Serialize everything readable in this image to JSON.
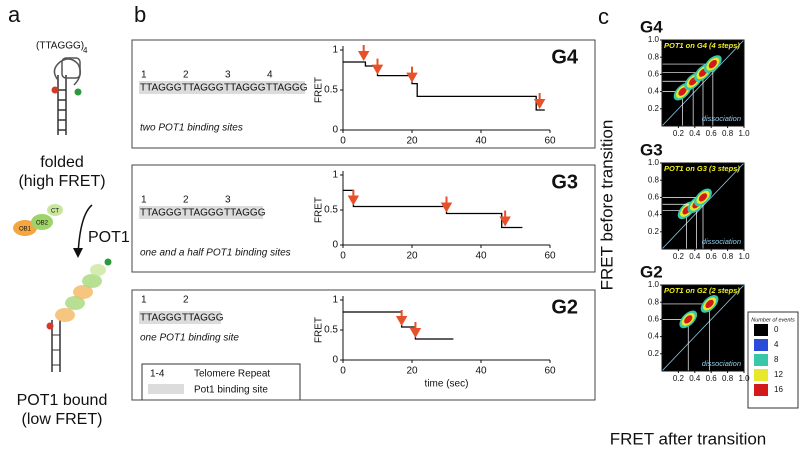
{
  "panel_a": {
    "label": "a",
    "repeat": "(TTAGGG)",
    "repeat_count": "4",
    "folded": "folded",
    "folded_state": "(high FRET)",
    "ob1": "OB1",
    "ob2": "OB2",
    "ct": "CT",
    "protein": "POT1",
    "bound": "POT1 bound",
    "bound_state": "(low FRET)"
  },
  "panel_b": {
    "label": "b",
    "rows": [
      {
        "numbers": [
          "1",
          "2",
          "3",
          "4"
        ],
        "repeats": [
          "TTAGGG",
          "TTAGGG",
          "TTAGGG",
          "TTAGGG"
        ],
        "caption": "two POT1 binding sites"
      },
      {
        "numbers": [
          "1",
          "2",
          "3"
        ],
        "repeats": [
          "TTAGGG",
          "TTAGGG",
          "TTAGGG"
        ],
        "caption": "one and a half POT1 binding sites"
      },
      {
        "numbers": [
          "1",
          "2"
        ],
        "repeats": [
          "TTAGGG",
          "TTAGGG"
        ],
        "caption": "one POT1 binding site"
      }
    ],
    "legend": {
      "range": "1-4",
      "repeat": "Telomere Repeat",
      "site": "Pot1 binding site"
    }
  },
  "panel_c": {
    "label": "c",
    "xlabel": "FRET after transition",
    "ylabel": "FRET before transition",
    "colorbar": {
      "title": "Number of events",
      "ticks": [
        0,
        4,
        8,
        12,
        16
      ],
      "colors": [
        "#000000",
        "#2a4bd7",
        "#38c7a8",
        "#e8e82a",
        "#d21a1a"
      ]
    }
  },
  "chart_data": [
    {
      "type": "line",
      "title": "G4",
      "ylabel": "FRET",
      "color": "#000000",
      "arrow_color": "#e8502a",
      "x": [
        0,
        6.5,
        6.5,
        10,
        10,
        20,
        20,
        21.5,
        21.5,
        56,
        56,
        58.5
      ],
      "values": [
        0.85,
        0.85,
        0.8,
        0.8,
        0.68,
        0.68,
        0.58,
        0.58,
        0.42,
        0.42,
        0.25,
        0.25
      ],
      "arrows": [
        6,
        10,
        20,
        57
      ],
      "xlim": [
        0,
        60
      ],
      "ylim": [
        0,
        1
      ],
      "xticks": [
        0,
        20,
        40,
        60
      ],
      "yticks": [
        0,
        0.5,
        1
      ]
    },
    {
      "type": "line",
      "title": "G3",
      "ylabel": "FRET",
      "color": "#000000",
      "arrow_color": "#e8502a",
      "x": [
        0,
        3,
        3,
        30,
        30,
        46,
        46,
        52
      ],
      "values": [
        0.78,
        0.78,
        0.55,
        0.55,
        0.45,
        0.45,
        0.25,
        0.25
      ],
      "arrows": [
        3,
        30,
        47
      ],
      "xlim": [
        0,
        60
      ],
      "ylim": [
        0,
        1
      ],
      "xticks": [
        0,
        20,
        40,
        60
      ],
      "yticks": [
        0,
        0.5,
        1
      ]
    },
    {
      "type": "line",
      "title": "G2",
      "ylabel": "FRET",
      "xlabel": "time (sec)",
      "color": "#000000",
      "arrow_color": "#e8502a",
      "x": [
        0,
        17,
        17,
        21,
        21,
        32
      ],
      "values": [
        0.8,
        0.8,
        0.55,
        0.55,
        0.35,
        0.35
      ],
      "arrows": [
        17,
        21
      ],
      "xlim": [
        0,
        60
      ],
      "ylim": [
        0,
        1
      ],
      "xticks": [
        0,
        20,
        40,
        60
      ],
      "yticks": [
        0,
        0.5,
        1
      ]
    },
    {
      "type": "heatmap",
      "title": "G4",
      "label": "POT1 on G4 (4 steps)",
      "annotation": "dissociation",
      "x": [
        0.25,
        0.38,
        0.5,
        0.62
      ],
      "values": [
        0.4,
        0.52,
        0.62,
        0.72
      ],
      "xlim": [
        0,
        1
      ],
      "ylim": [
        0,
        1
      ],
      "xticks": [
        0.2,
        0.4,
        0.6,
        0.8,
        {
          "value": 1,
          "label": "1.0"
        }
      ],
      "yticks": [
        0.2,
        0.4,
        0.6,
        0.8,
        {
          "value": 1,
          "label": "1.0"
        }
      ]
    },
    {
      "type": "heatmap",
      "title": "G3",
      "label": "POT1 on G3 (3 steps)",
      "annotation": "dissociation",
      "x": [
        0.3,
        0.42,
        0.5
      ],
      "values": [
        0.45,
        0.52,
        0.6
      ],
      "xlim": [
        0,
        1
      ],
      "ylim": [
        0,
        1
      ],
      "xticks": [
        0.2,
        0.4,
        0.6,
        0.8,
        {
          "value": 1,
          "label": "1.0"
        }
      ],
      "yticks": [
        0.2,
        0.4,
        0.6,
        0.8,
        {
          "value": 1,
          "label": "1.0"
        }
      ]
    },
    {
      "type": "heatmap",
      "title": "G2",
      "label": "POT1 on G2 (2 steps)",
      "annotation": "dissociation",
      "x": [
        0.32,
        0.58
      ],
      "values": [
        0.6,
        0.78
      ],
      "xlim": [
        0,
        1
      ],
      "ylim": [
        0,
        1
      ],
      "xticks": [
        0.2,
        0.4,
        0.6,
        0.8,
        {
          "value": 1,
          "label": "1.0"
        }
      ],
      "yticks": [
        0.2,
        0.4,
        0.6,
        0.8,
        {
          "value": 1,
          "label": "1.0"
        }
      ]
    }
  ]
}
